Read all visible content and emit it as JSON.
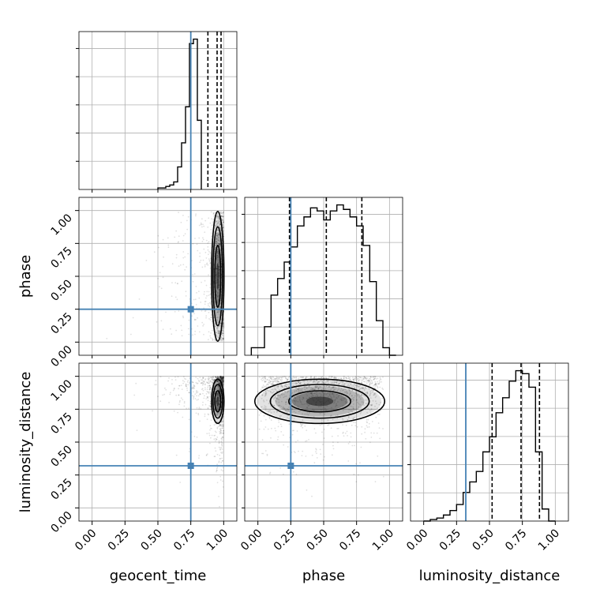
{
  "chart_data": {
    "type": "corner",
    "parameters": [
      "geocent_time",
      "phase",
      "luminosity_distance"
    ],
    "axis_range": [
      -0.1,
      1.1
    ],
    "tick_values": [
      0.0,
      0.25,
      0.5,
      0.75,
      1.0
    ],
    "tick_labels": [
      "0.00",
      "0.25",
      "0.50",
      "0.75",
      "1.00"
    ],
    "truth": [
      0.75,
      0.25,
      0.32
    ],
    "truth_color": "#4682b4",
    "grid": true,
    "histograms": [
      {
        "parameter": "geocent_time",
        "bin_start": 0.5,
        "bin_width": 0.03,
        "values": [
          0.01,
          0.01,
          0.02,
          0.03,
          0.05,
          0.15,
          0.31,
          0.55,
          0.97,
          1.0,
          0.46
        ],
        "quantiles": [
          0.88,
          0.95,
          0.98
        ]
      },
      {
        "parameter": "phase",
        "bin_start": -0.05,
        "bin_width": 0.05,
        "values": [
          0.05,
          0.05,
          0.19,
          0.4,
          0.51,
          0.62,
          0.72,
          0.86,
          0.92,
          0.98,
          0.96,
          0.9,
          0.96,
          1.0,
          0.97,
          0.92,
          0.86,
          0.73,
          0.49,
          0.23,
          0.05,
          0.0
        ],
        "quantiles": [
          0.24,
          0.52,
          0.79
        ]
      },
      {
        "parameter": "luminosity_distance",
        "bin_start": 0.0,
        "bin_width": 0.05,
        "values": [
          0.0,
          0.01,
          0.02,
          0.04,
          0.07,
          0.11,
          0.19,
          0.26,
          0.33,
          0.46,
          0.56,
          0.72,
          0.82,
          0.93,
          1.0,
          0.98,
          0.89,
          0.46,
          0.08,
          0.0
        ],
        "quantiles": [
          0.52,
          0.74,
          0.88
        ]
      }
    ],
    "scatter_2d": [
      {
        "x": "geocent_time",
        "y": "phase",
        "x_center": 0.95,
        "x_spread": 0.02,
        "y_center": 0.5,
        "y_spread": 0.45
      },
      {
        "x": "geocent_time",
        "y": "luminosity_distance",
        "x_center": 0.95,
        "x_spread": 0.02,
        "y_center": 0.82,
        "y_spread": 0.14
      },
      {
        "x": "phase",
        "y": "luminosity_distance",
        "x_center": 0.48,
        "x_spread": 0.45,
        "y_center": 0.8,
        "y_spread": 0.14
      }
    ]
  }
}
